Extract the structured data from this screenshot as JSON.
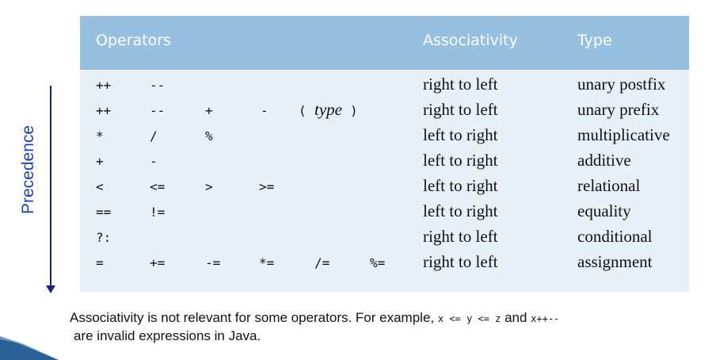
{
  "headers": {
    "operators": "Operators",
    "associativity": "Associativity",
    "type": "Type"
  },
  "rows": [
    {
      "ops": [
        "++",
        "--"
      ],
      "assoc": "right to left",
      "type": "unary postfix"
    },
    {
      "ops": [
        "++",
        "--",
        "+",
        "-"
      ],
      "cast_open": "(",
      "cast_word": "type",
      "cast_close": ")",
      "assoc": "right to left",
      "type": "unary prefix"
    },
    {
      "ops": [
        "*",
        "/",
        "%"
      ],
      "assoc": "left to right",
      "type": "multiplicative"
    },
    {
      "ops": [
        "+",
        "-"
      ],
      "assoc": "left to right",
      "type": "additive"
    },
    {
      "ops": [
        "<",
        "<=",
        ">",
        ">="
      ],
      "assoc": "left to right",
      "type": "relational"
    },
    {
      "ops": [
        "==",
        "!="
      ],
      "assoc": "left to right",
      "type": "equality"
    },
    {
      "ops": [
        "?:"
      ],
      "assoc": "right to left",
      "type": "conditional"
    },
    {
      "ops": [
        "=",
        "+=",
        "-=",
        "*=",
        "/=",
        "%="
      ],
      "assoc": "right to left",
      "type": "assignment"
    }
  ],
  "precedence_label": "Precedence",
  "note": {
    "text1": "Associativity is not relevant for some operators. For example, ",
    "code1": "x <= y <= z",
    "text2": " and ",
    "code2": "x++--",
    "text3": "are invalid expressions in Java."
  },
  "colors": {
    "header_bg": "#96bfe0",
    "body_bg": "#e8f0f7",
    "arrow": "#1a237e",
    "label": "#1f3fb8"
  }
}
